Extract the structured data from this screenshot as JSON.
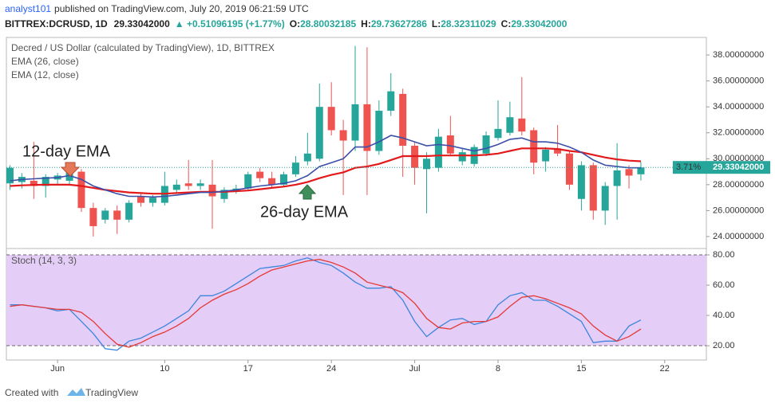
{
  "header": {
    "author": "analyst101",
    "published": "published on TradingView.com, July 20, 2019 06:21:59 UTC",
    "symbol": "BITTREX:DCRUSD, 1D",
    "price": "29.33042000",
    "change": "▲ +0.51096195 (+1.77%)",
    "ohlc": [
      {
        "label": "O:",
        "text": "28.80032185"
      },
      {
        "label": "H:",
        "text": "29.73627286"
      },
      {
        "label": "L:",
        "text": "28.32311029"
      },
      {
        "label": "C:",
        "text": "29.33042000"
      }
    ]
  },
  "chart_data": [
    {
      "type": "candlestick",
      "title": "Decred / US Dollar (calculated by TradingView), 1D, BITTREX",
      "up_color": "#26a69a",
      "down_color": "#ef5350",
      "xlim": [
        -0.3,
        58.5
      ],
      "ylim": [
        23.2,
        39.17
      ],
      "yticks": [
        {
          "value": 24,
          "label": "24.00000000"
        },
        {
          "value": 26,
          "label": "26.00000000"
        },
        {
          "value": 28,
          "label": "28.00000000"
        },
        {
          "value": 30,
          "label": "30.00000000"
        },
        {
          "value": 32,
          "label": "32.00000000"
        },
        {
          "value": 34,
          "label": "34.00000000"
        },
        {
          "value": 36,
          "label": "36.00000000"
        },
        {
          "value": 38,
          "label": "38.00000000"
        }
      ],
      "open": [
        28.1,
        28.2,
        28.3,
        27.9,
        28.4,
        28.3,
        29.0,
        26.2,
        25.3,
        26.0,
        25.3,
        27.1,
        26.6,
        26.6,
        27.6,
        28.1,
        27.9,
        28.0,
        26.9,
        27.5,
        27.7,
        29.0,
        28.5,
        28.0,
        28.8,
        29.8,
        30.0,
        34.0,
        32.2,
        31.4,
        34.2,
        30.6,
        33.7,
        35.0,
        31.0,
        29.2,
        29.3,
        31.8,
        29.8,
        29.6,
        30.4,
        31.6,
        32.0,
        33.1,
        32.2,
        29.8,
        30.8,
        30.4,
        26.9,
        29.5,
        26.0,
        27.9,
        29.2,
        28.8
      ],
      "high": [
        29.5,
        28.9,
        31.3,
        28.8,
        28.9,
        29.4,
        29.2,
        26.6,
        26.2,
        26.4,
        26.8,
        27.3,
        27.2,
        29.0,
        28.4,
        29.9,
        28.4,
        29.9,
        27.8,
        28.0,
        29.0,
        29.3,
        29.0,
        29.0,
        30.2,
        32.0,
        35.8,
        35.9,
        33.0,
        38.7,
        38.6,
        34.5,
        36.6,
        35.4,
        31.3,
        30.5,
        32.3,
        33.3,
        30.8,
        31.1,
        32.1,
        34.5,
        34.4,
        36.3,
        32.4,
        30.9,
        32.6,
        30.6,
        29.8,
        29.7,
        28.2,
        31.2,
        29.5,
        29.74
      ],
      "low": [
        27.6,
        27.7,
        26.9,
        27.0,
        28.0,
        28.0,
        25.9,
        24.0,
        25.0,
        24.2,
        25.1,
        26.3,
        26.3,
        26.4,
        27.4,
        27.6,
        27.6,
        24.6,
        26.6,
        27.3,
        27.5,
        28.2,
        27.8,
        27.8,
        28.6,
        29.5,
        29.8,
        31.8,
        27.2,
        30.6,
        27.2,
        30.3,
        33.3,
        28.6,
        28.0,
        25.8,
        29.0,
        30.2,
        29.5,
        29.4,
        30.2,
        31.4,
        31.8,
        31.8,
        28.8,
        29.0,
        30.2,
        27.6,
        26.0,
        25.3,
        24.9,
        25.3,
        27.7,
        28.32
      ],
      "close": [
        29.3,
        28.6,
        27.9,
        28.6,
        28.7,
        29.2,
        26.2,
        24.8,
        26.0,
        25.3,
        26.6,
        26.6,
        27.0,
        27.9,
        28.0,
        27.9,
        28.1,
        27.1,
        27.6,
        27.7,
        28.8,
        28.5,
        28.0,
        28.8,
        29.7,
        30.4,
        34.0,
        32.2,
        31.4,
        34.2,
        30.6,
        33.7,
        35.2,
        31.0,
        29.3,
        30.0,
        31.7,
        30.4,
        30.5,
        30.9,
        31.8,
        32.3,
        33.2,
        32.1,
        29.7,
        30.7,
        30.4,
        28.0,
        29.5,
        26.0,
        27.9,
        29.1,
        28.7,
        29.33
      ],
      "series": [
        {
          "name": "EMA (26, close)",
          "color": "#e31a1c",
          "values": [
            27.9,
            27.95,
            27.98,
            28.0,
            28.0,
            28.0,
            27.9,
            27.75,
            27.6,
            27.5,
            27.4,
            27.35,
            27.3,
            27.3,
            27.35,
            27.4,
            27.45,
            27.45,
            27.45,
            27.5,
            27.55,
            27.65,
            27.75,
            27.85,
            28.0,
            28.2,
            28.5,
            28.75,
            28.95,
            29.3,
            29.4,
            29.6,
            29.9,
            30.2,
            30.2,
            30.2,
            30.25,
            30.25,
            30.25,
            30.25,
            30.3,
            30.4,
            30.6,
            30.8,
            30.8,
            30.8,
            30.75,
            30.6,
            30.5,
            30.3,
            30.1,
            29.95,
            29.85,
            29.8
          ]
        },
        {
          "name": "EMA (12, close)",
          "color": "#3c4fa8",
          "values": [
            28.3,
            28.4,
            28.45,
            28.5,
            28.55,
            28.7,
            28.4,
            27.9,
            27.6,
            27.3,
            27.1,
            27.1,
            27.05,
            27.1,
            27.2,
            27.3,
            27.4,
            27.4,
            27.5,
            27.6,
            27.75,
            27.9,
            28.0,
            28.1,
            28.3,
            28.7,
            29.4,
            29.7,
            30.0,
            30.9,
            30.9,
            31.3,
            31.8,
            31.6,
            31.3,
            31.0,
            31.1,
            31.0,
            30.8,
            30.6,
            30.8,
            31.1,
            31.5,
            31.6,
            31.3,
            31.3,
            31.2,
            30.9,
            30.5,
            29.9,
            29.5,
            29.4,
            29.3,
            29.3
          ]
        }
      ],
      "last_price": {
        "value": 29.33042,
        "label": "29.33042000"
      },
      "last_change_label": "3.71%",
      "annotations": [
        "12-day EMA",
        "26-day EMA"
      ]
    },
    {
      "type": "line",
      "title": "Stoch (14, 3, 3)",
      "xlim": [
        -0.3,
        58.5
      ],
      "ylim": [
        11.6,
        83.7
      ],
      "yticks": [
        {
          "value": 20,
          "label": "20.00"
        },
        {
          "value": 40,
          "label": "40.00"
        },
        {
          "value": 60,
          "label": "60.00"
        },
        {
          "value": 80,
          "label": "80.00"
        }
      ],
      "bands": [
        20,
        80
      ],
      "band_color": "#e4cdf7",
      "xticks": [
        {
          "value": 4,
          "label": "Jun"
        },
        {
          "value": 13,
          "label": "10"
        },
        {
          "value": 20,
          "label": "17"
        },
        {
          "value": 27,
          "label": "24"
        },
        {
          "value": 34,
          "label": "Jul"
        },
        {
          "value": 41,
          "label": "8"
        },
        {
          "value": 48,
          "label": "15"
        },
        {
          "value": 55,
          "label": "22"
        }
      ],
      "series": [
        {
          "color": "#3d85dd",
          "values": [
            47,
            47,
            46,
            45,
            43,
            44,
            36,
            28,
            18,
            17,
            23,
            25,
            29,
            33,
            38,
            43,
            53,
            53,
            56,
            61,
            66,
            71,
            72,
            73,
            76,
            78,
            75,
            73,
            68,
            62,
            58,
            58,
            59,
            50,
            36,
            26,
            32,
            37,
            38,
            34,
            36,
            47,
            53,
            55,
            50,
            50,
            46,
            41,
            36,
            22,
            23,
            23,
            33,
            37
          ]
        },
        {
          "color": "#e53935",
          "values": [
            46,
            47,
            46,
            45,
            44,
            44,
            42,
            36,
            28,
            21,
            19,
            22,
            26,
            29,
            33,
            38,
            45,
            50,
            54,
            57,
            61,
            66,
            70,
            72,
            74,
            76,
            77,
            75,
            72,
            68,
            62,
            60,
            58,
            55,
            48,
            38,
            32,
            31,
            35,
            36,
            36,
            39,
            46,
            52,
            53,
            51,
            48,
            45,
            41,
            33,
            27,
            23,
            26,
            31
          ]
        }
      ]
    }
  ],
  "footer": {
    "created": "Created with",
    "brand": "TradingView"
  }
}
